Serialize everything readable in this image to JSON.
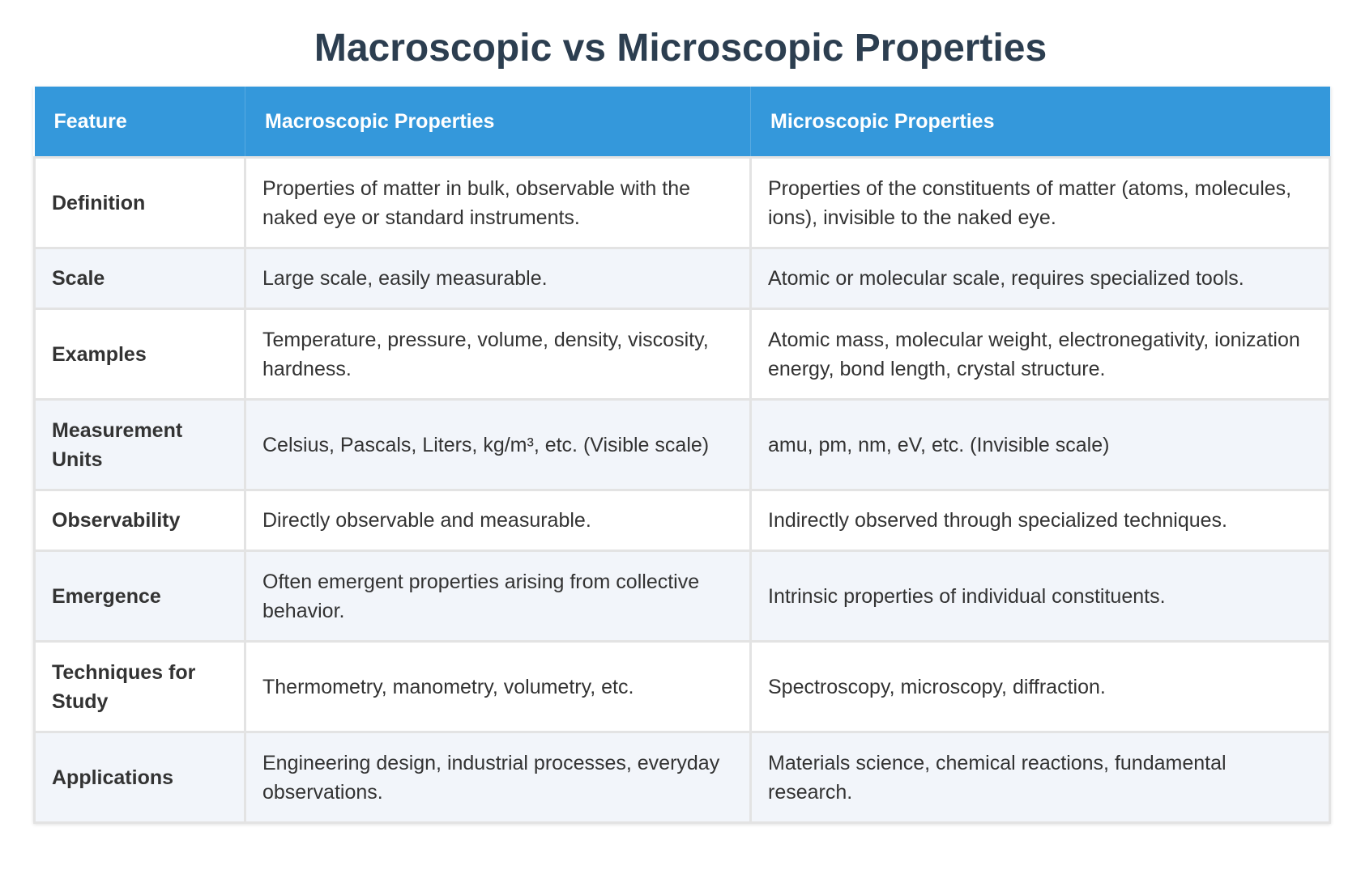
{
  "title": "Macroscopic vs Microscopic Properties",
  "table": {
    "headers": [
      "Feature",
      "Macroscopic Properties",
      "Microscopic Properties"
    ],
    "rows": [
      {
        "feature": "Definition",
        "macro": "Properties of matter in bulk, observable with the naked eye or standard instruments.",
        "micro": "Properties of the constituents of matter (atoms, molecules, ions), invisible to the naked eye."
      },
      {
        "feature": "Scale",
        "macro": "Large scale, easily measurable.",
        "micro": "Atomic or molecular scale, requires specialized tools."
      },
      {
        "feature": "Examples",
        "macro": "Temperature, pressure, volume, density, viscosity, hardness.",
        "micro": "Atomic mass, molecular weight, electronegativity, ionization energy, bond length, crystal structure."
      },
      {
        "feature": "Measurement Units",
        "macro": "Celsius, Pascals, Liters, kg/m³, etc. (Visible scale)",
        "micro": "amu, pm, nm, eV, etc. (Invisible scale)"
      },
      {
        "feature": "Observability",
        "macro": "Directly observable and measurable.",
        "micro": "Indirectly observed through specialized techniques."
      },
      {
        "feature": "Emergence",
        "macro": "Often emergent properties arising from collective behavior.",
        "micro": "Intrinsic properties of individual constituents."
      },
      {
        "feature": "Techniques for Study",
        "macro": "Thermometry, manometry, volumetry, etc.",
        "micro": "Spectroscopy, microscopy, diffraction."
      },
      {
        "feature": "Applications",
        "macro": "Engineering design, industrial processes, everyday observations.",
        "micro": "Materials science, chemical reactions, fundamental research."
      }
    ]
  },
  "colors": {
    "title": "#2c3e50",
    "header_bg": "#3498db",
    "header_text": "#ffffff",
    "row_alt_bg": "#f2f5fa",
    "border": "#e3e3e3"
  }
}
